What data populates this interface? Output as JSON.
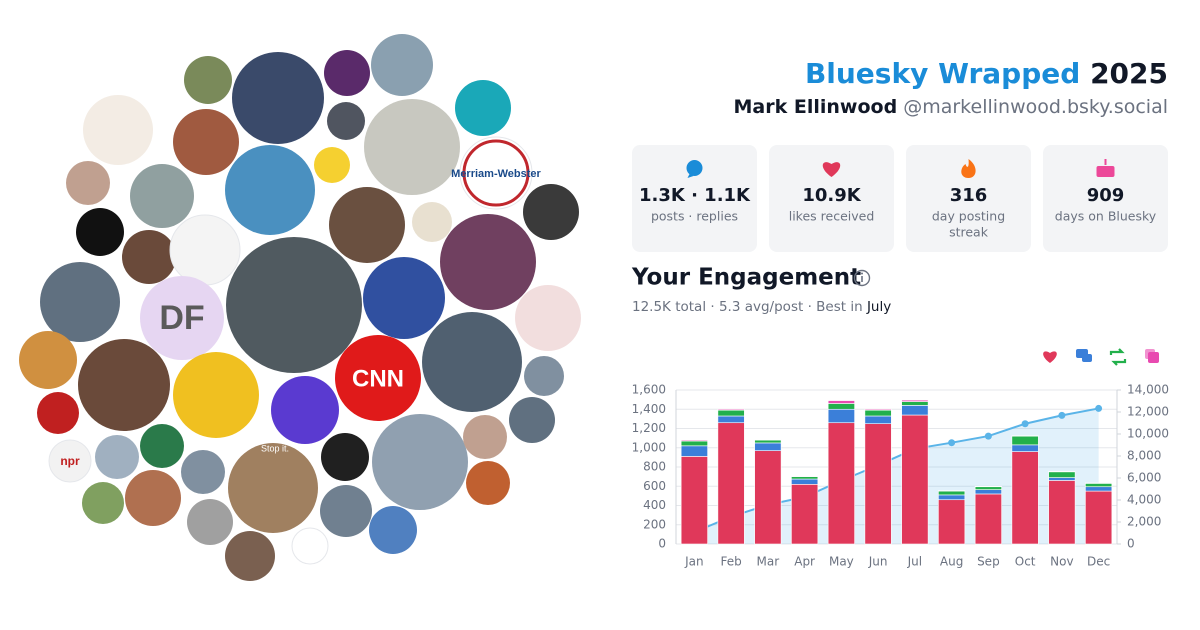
{
  "header": {
    "title_brand": "Bluesky Wrapped",
    "year": "2025",
    "display_name": "Mark Ellinwood",
    "handle": "@markellinwood.bsky.social"
  },
  "stats": [
    {
      "value": "1.3K · 1.1K",
      "label": "posts · replies"
    },
    {
      "value": "10.9K",
      "label": "likes received"
    },
    {
      "value": "316",
      "label": [
        "day posting",
        "streak"
      ]
    },
    {
      "value": "909",
      "label": "days on Bluesky"
    }
  ],
  "engagement": {
    "title": "Your Engagement",
    "total": "12.5K total",
    "separator": "·",
    "average": "5.3 avg/post",
    "best_prefix": "Best in",
    "best_month": "July"
  },
  "avatar_texts": [
    "DF",
    "CNN",
    "npr",
    "Merriam-Webster",
    "Stop it."
  ],
  "chart_data": {
    "type": "bar",
    "stacked": true,
    "grid": true,
    "categories": [
      "Jan",
      "Feb",
      "Mar",
      "Apr",
      "May",
      "Jun",
      "Jul",
      "Aug",
      "Sep",
      "Oct",
      "Nov",
      "Dec"
    ],
    "series": [
      {
        "color": "#e0385a",
        "values": [
          910,
          1260,
          970,
          620,
          1260,
          1250,
          1340,
          460,
          520,
          960,
          660,
          550
        ]
      },
      {
        "color": "#3b7fd9",
        "values": [
          110,
          70,
          80,
          55,
          140,
          80,
          100,
          50,
          45,
          70,
          30,
          45
        ]
      },
      {
        "color": "#22b04b",
        "values": [
          50,
          60,
          30,
          25,
          60,
          60,
          40,
          40,
          30,
          90,
          60,
          35
        ]
      },
      {
        "color": "#e84ab0",
        "values": [
          10,
          10,
          5,
          5,
          30,
          10,
          15,
          5,
          5,
          5,
          5,
          5
        ]
      },
      {
        "type": "line",
        "axis": "y2",
        "color": "#5ab4e8",
        "values": [
          1080,
          2480,
          3565,
          4270,
          5760,
          7160,
          8655,
          9210,
          9810,
          10935,
          11690,
          12325
        ]
      }
    ],
    "ylim": [
      0,
      1600
    ],
    "yticks": [
      0,
      200,
      400,
      600,
      800,
      {
        "value": 1000,
        "label": "1,000"
      },
      {
        "value": 1200,
        "label": "1,200"
      },
      {
        "value": 1400,
        "label": "1,400"
      },
      {
        "value": 1600,
        "label": "1,600"
      }
    ],
    "y2lim": [
      0,
      14000
    ],
    "y2ticks": [
      0,
      {
        "value": 2000,
        "label": "2,000"
      },
      {
        "value": 4000,
        "label": "4,000"
      },
      {
        "value": 6000,
        "label": "6,000"
      },
      {
        "value": 8000,
        "label": "8,000"
      },
      {
        "value": 10000,
        "label": "10,000"
      },
      {
        "value": 12000,
        "label": "12,000"
      },
      {
        "value": 14000,
        "label": "14,000"
      }
    ]
  }
}
